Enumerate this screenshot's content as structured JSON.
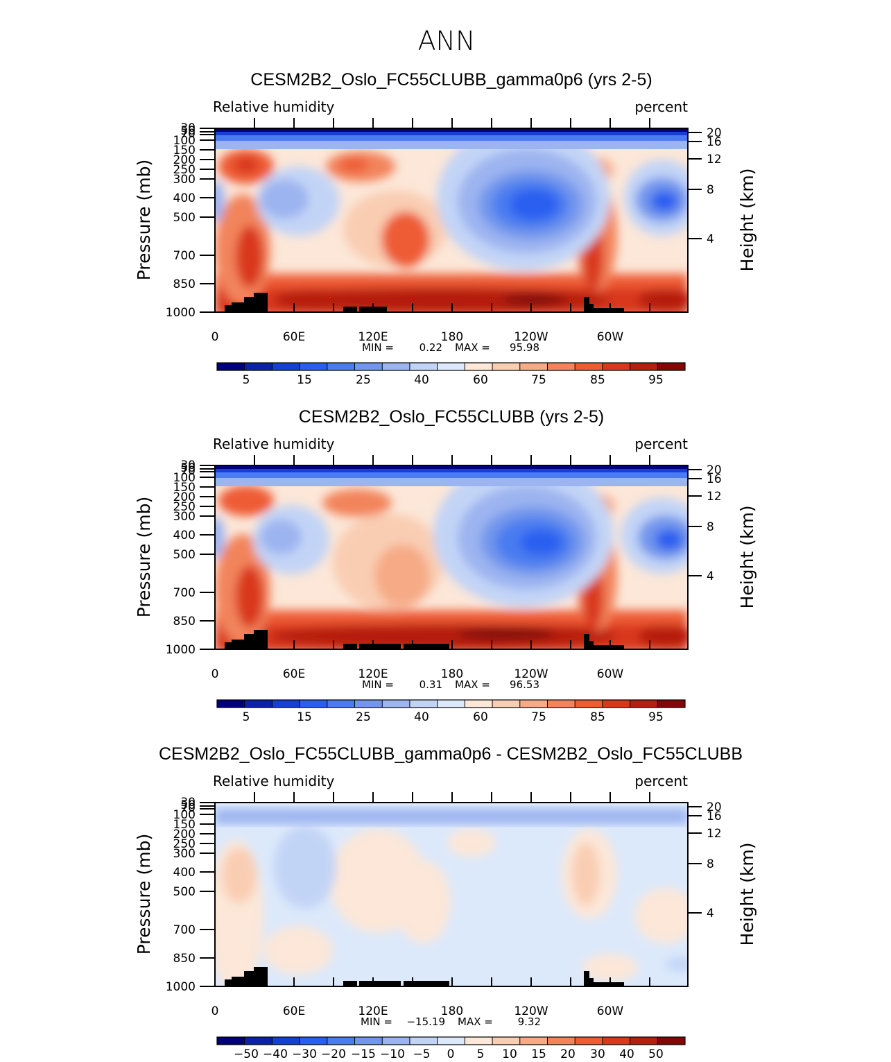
{
  "figure_title": "ANN",
  "chart_data": [
    {
      "type": "heatmap",
      "title": "CESM2B2_Oslo_FC55CLUBB_gamma0p6 (yrs 2-5)",
      "variable": "Relative humidity",
      "units": "percent",
      "ylabel": "Pressure (mb)",
      "ylabel_right": "Height (km)",
      "y_ticks": [
        "30",
        "50",
        "70",
        "100",
        "150",
        "200",
        "250",
        "300",
        "400",
        "500",
        "700",
        "850",
        "1000"
      ],
      "y_ticks_right": [
        "20",
        "16",
        "12",
        "8",
        "4"
      ],
      "x_ticks": [
        "0",
        "60E",
        "120E",
        "180",
        "120W",
        "60W"
      ],
      "min_label": "MIN =",
      "min_value": "0.22",
      "max_label": "MAX =",
      "max_value": "95.98",
      "colorbar_labels": [
        "5",
        "15",
        "25",
        "40",
        "60",
        "75",
        "85",
        "95"
      ]
    },
    {
      "type": "heatmap",
      "title": "CESM2B2_Oslo_FC55CLUBB (yrs 2-5)",
      "variable": "Relative humidity",
      "units": "percent",
      "ylabel": "Pressure (mb)",
      "ylabel_right": "Height (km)",
      "y_ticks": [
        "30",
        "50",
        "70",
        "100",
        "150",
        "200",
        "250",
        "300",
        "400",
        "500",
        "700",
        "850",
        "1000"
      ],
      "y_ticks_right": [
        "20",
        "16",
        "12",
        "8",
        "4"
      ],
      "x_ticks": [
        "0",
        "60E",
        "120E",
        "180",
        "120W",
        "60W"
      ],
      "min_label": "MIN =",
      "min_value": "0.31",
      "max_label": "MAX =",
      "max_value": "96.53",
      "colorbar_labels": [
        "5",
        "15",
        "25",
        "40",
        "60",
        "75",
        "85",
        "95"
      ]
    },
    {
      "type": "heatmap",
      "title": "CESM2B2_Oslo_FC55CLUBB_gamma0p6 - CESM2B2_Oslo_FC55CLUBB",
      "variable": "Relative humidity",
      "units": "percent",
      "ylabel": "Pressure (mb)",
      "ylabel_right": "Height (km)",
      "y_ticks": [
        "30",
        "50",
        "70",
        "100",
        "150",
        "200",
        "250",
        "300",
        "400",
        "500",
        "700",
        "850",
        "1000"
      ],
      "y_ticks_right": [
        "20",
        "16",
        "12",
        "8",
        "4"
      ],
      "x_ticks": [
        "0",
        "60E",
        "120E",
        "180",
        "120W",
        "60W"
      ],
      "min_label": "MIN =",
      "min_value": "−15.19",
      "max_label": "MAX =",
      "max_value": "9.32",
      "colorbar_labels": [
        "−50",
        "−40",
        "−30",
        "−20",
        "−15",
        "−10",
        "−5",
        "0",
        "5",
        "10",
        "15",
        "20",
        "30",
        "40",
        "50"
      ]
    }
  ],
  "colors": {
    "palette": [
      "#00007a",
      "#0a22a8",
      "#1440d4",
      "#2a5ef0",
      "#4a7cf0",
      "#7296ec",
      "#9cb4f0",
      "#c2d4f6",
      "#dce9fb",
      "#fce7d8",
      "#f9cdb2",
      "#f6aa86",
      "#f2845c",
      "#ee5b34",
      "#d9381c",
      "#b51f10",
      "#830707"
    ],
    "land": "#000000"
  }
}
